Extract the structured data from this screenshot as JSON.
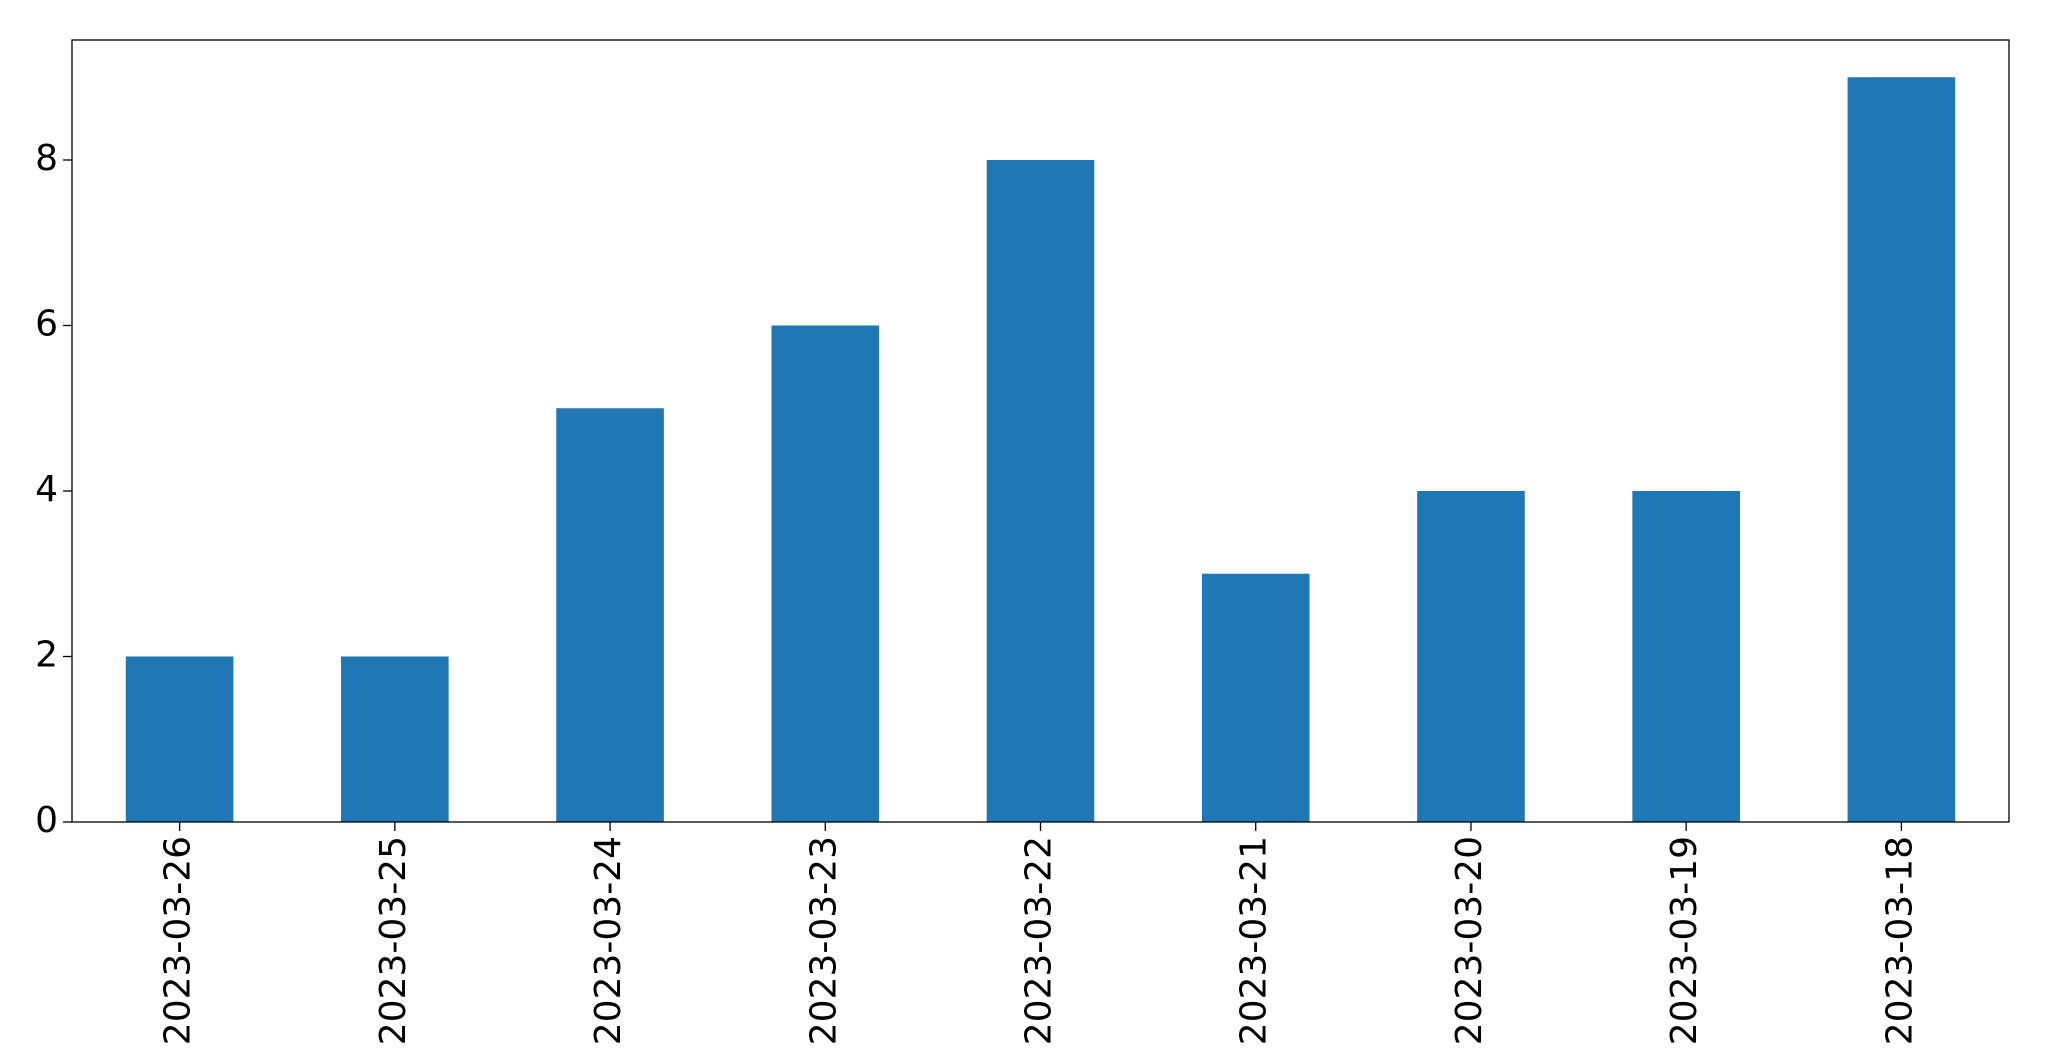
{
  "chart_data": {
    "type": "bar",
    "categories": [
      "2023-03-26",
      "2023-03-25",
      "2023-03-24",
      "2023-03-23",
      "2023-03-22",
      "2023-03-21",
      "2023-03-20",
      "2023-03-19",
      "2023-03-18"
    ],
    "values": [
      2,
      2,
      5,
      6,
      8,
      3,
      4,
      4,
      9
    ],
    "color": "#1f77b4",
    "ylim": [
      0,
      9.45
    ],
    "yticks": [
      0,
      2,
      4,
      6,
      8
    ],
    "grid": false
  }
}
